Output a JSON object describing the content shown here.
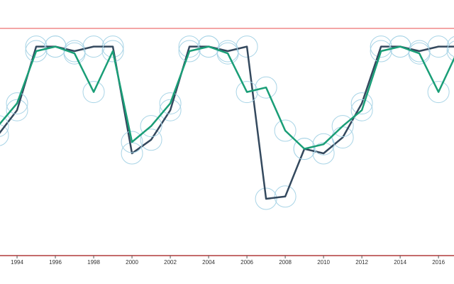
{
  "chart_data": {
    "type": "line",
    "x": [
      1993,
      1994,
      1995,
      1996,
      1997,
      1998,
      1999,
      2000,
      2001,
      2002,
      2003,
      2004,
      2005,
      2006,
      2007,
      2008,
      2009,
      2010,
      2011,
      2012,
      2013,
      2014,
      2015,
      2016,
      2017
    ],
    "series": [
      {
        "color": "#34495e",
        "values": [
          53,
          64,
          92,
          92,
          90,
          92,
          92,
          45,
          51,
          64,
          92,
          92,
          90,
          92,
          25,
          26,
          47,
          45,
          52,
          67,
          92,
          92,
          90,
          92,
          92
        ]
      },
      {
        "color": "#1a9e77",
        "values": [
          57,
          67,
          90,
          92,
          89,
          72,
          90,
          50,
          57,
          67,
          90,
          92,
          89,
          72,
          74,
          55,
          47,
          49,
          57,
          64,
          90,
          92,
          89,
          72,
          90
        ]
      }
    ],
    "xlim": [
      1993.11,
      2016.81
    ],
    "xticks": [
      1994,
      1996,
      1998,
      2000,
      2002,
      2004,
      2006,
      2008,
      2010,
      2012,
      2014,
      2016
    ],
    "ylim": [
      0,
      100
    ],
    "marker_color": "#a8d4e6",
    "limit_color": "#f4a6a6",
    "axis_color": "#b03a3a"
  }
}
